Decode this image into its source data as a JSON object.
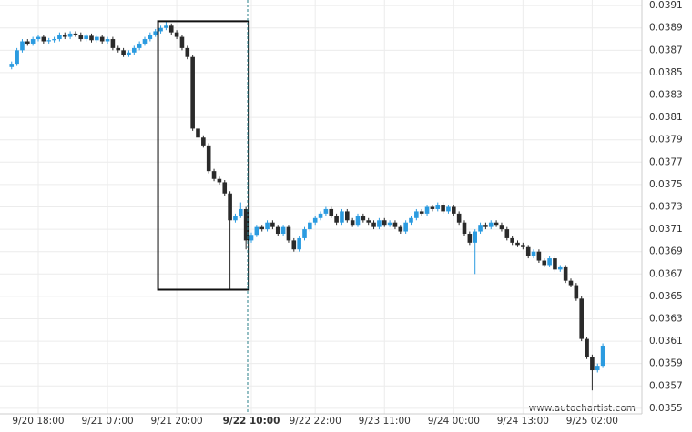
{
  "chart_data": {
    "type": "candlestick",
    "categories": [
      null,
      null,
      null,
      null,
      null,
      "9/20 18:00",
      null,
      null,
      null,
      null,
      null,
      null,
      null,
      null,
      null,
      null,
      null,
      null,
      "9/21 07:00",
      null,
      null,
      null,
      null,
      null,
      null,
      null,
      null,
      null,
      null,
      null,
      null,
      "9/21 20:00",
      null,
      null,
      null,
      null,
      null,
      null,
      null,
      null,
      null,
      null,
      null,
      null,
      null,
      "9/22 10:00",
      null,
      null,
      null,
      null,
      null,
      null,
      null,
      null,
      null,
      null,
      null,
      "9/22 22:00",
      null,
      null,
      null,
      null,
      null,
      null,
      null,
      null,
      null,
      null,
      null,
      null,
      "9/23 11:00",
      null,
      null,
      null,
      null,
      null,
      null,
      null,
      null,
      null,
      null,
      null,
      null,
      "9/24 00:00",
      null,
      null,
      null,
      null,
      null,
      null,
      null,
      null,
      null,
      null,
      null,
      null,
      "9/24 13:00",
      null,
      null,
      null,
      null,
      null,
      null,
      null,
      null,
      null,
      null,
      null,
      null,
      "9/25 02:00",
      null,
      null
    ],
    "open": [
      0.03855,
      0.03858,
      0.0387,
      0.03878,
      0.03876,
      0.0388,
      0.03882,
      0.03878,
      0.03879,
      0.0388,
      0.03884,
      0.03882,
      0.03885,
      0.03884,
      0.0388,
      0.03883,
      0.03879,
      0.03882,
      0.03878,
      0.0388,
      0.03872,
      0.0387,
      0.03866,
      0.03868,
      0.03872,
      0.03876,
      0.0388,
      0.03884,
      0.03887,
      0.0389,
      0.03892,
      0.03886,
      0.03882,
      0.03872,
      0.03864,
      0.038,
      0.03792,
      0.03785,
      0.03762,
      0.03755,
      0.03752,
      0.03742,
      0.03718,
      0.03722,
      0.03728,
      0.037,
      0.03705,
      0.03712,
      0.0371,
      0.03716,
      0.03712,
      0.03706,
      0.03712,
      0.037,
      0.03692,
      0.03702,
      0.0371,
      0.03716,
      0.0372,
      0.03724,
      0.03728,
      0.03722,
      0.03716,
      0.03726,
      0.03718,
      0.03714,
      0.03722,
      0.03718,
      0.03716,
      0.03712,
      0.03718,
      0.03714,
      0.03716,
      0.03712,
      0.03708,
      0.03716,
      0.0372,
      0.03726,
      0.03724,
      0.0373,
      0.03728,
      0.03732,
      0.03726,
      0.0373,
      0.03724,
      0.03716,
      0.03706,
      0.03698,
      0.03708,
      0.03714,
      0.03712,
      0.03716,
      0.03714,
      0.0371,
      0.03702,
      0.03698,
      0.03696,
      0.03694,
      0.03686,
      0.0369,
      0.03682,
      0.03678,
      0.03684,
      0.03674,
      0.03676,
      0.03664,
      0.0366,
      0.03648,
      0.03612,
      0.03596,
      0.03584,
      0.03588
    ],
    "high": [
      0.0386,
      0.03872,
      0.0388,
      0.0388,
      0.03882,
      0.03884,
      0.03884,
      0.03881,
      0.03882,
      0.03886,
      0.03886,
      0.03887,
      0.03887,
      0.03886,
      0.03885,
      0.03885,
      0.03884,
      0.03884,
      0.03882,
      0.03882,
      0.03874,
      0.03872,
      0.0387,
      0.03874,
      0.03878,
      0.03882,
      0.03886,
      0.03889,
      0.03892,
      0.03896,
      0.03894,
      0.03888,
      0.03884,
      0.03874,
      0.03866,
      0.03802,
      0.03794,
      0.03787,
      0.03764,
      0.03757,
      0.03754,
      0.03744,
      0.03724,
      0.03734,
      0.0373,
      0.03707,
      0.03714,
      0.03714,
      0.03718,
      0.03718,
      0.03714,
      0.03714,
      0.03714,
      0.03702,
      0.03704,
      0.03712,
      0.03718,
      0.03722,
      0.03726,
      0.0373,
      0.0373,
      0.03724,
      0.03728,
      0.03728,
      0.0372,
      0.03724,
      0.03724,
      0.0372,
      0.03718,
      0.0372,
      0.0372,
      0.03718,
      0.03718,
      0.03714,
      0.03718,
      0.03722,
      0.03728,
      0.03728,
      0.03732,
      0.03732,
      0.03734,
      0.03734,
      0.03732,
      0.03732,
      0.03726,
      0.03718,
      0.03708,
      0.0371,
      0.03716,
      0.03716,
      0.03718,
      0.03718,
      0.03716,
      0.03712,
      0.03704,
      0.037,
      0.03698,
      0.03696,
      0.03692,
      0.03692,
      0.03684,
      0.03686,
      0.03686,
      0.03678,
      0.03678,
      0.03666,
      0.03662,
      0.0365,
      0.03614,
      0.03598,
      0.0359,
      0.03608
    ],
    "low": [
      0.03853,
      0.03856,
      0.03868,
      0.03874,
      0.03874,
      0.03878,
      0.03876,
      0.03876,
      0.03877,
      0.03878,
      0.0388,
      0.0388,
      0.03882,
      0.03878,
      0.03878,
      0.03877,
      0.03877,
      0.03876,
      0.03876,
      0.0387,
      0.03868,
      0.03864,
      0.03864,
      0.03866,
      0.0387,
      0.03874,
      0.03878,
      0.03882,
      0.03885,
      0.03888,
      0.03884,
      0.0388,
      0.0387,
      0.03862,
      0.03798,
      0.0379,
      0.03783,
      0.0376,
      0.03753,
      0.0375,
      0.0374,
      0.03656,
      0.03716,
      0.0372,
      0.03692,
      0.03698,
      0.03703,
      0.03708,
      0.03708,
      0.0371,
      0.03704,
      0.03704,
      0.03698,
      0.0369,
      0.0369,
      0.037,
      0.03708,
      0.03714,
      0.03718,
      0.03722,
      0.0372,
      0.03714,
      0.03714,
      0.03716,
      0.03712,
      0.03712,
      0.03716,
      0.03714,
      0.0371,
      0.0371,
      0.03712,
      0.03712,
      0.0371,
      0.03706,
      0.03706,
      0.03714,
      0.03718,
      0.03722,
      0.03722,
      0.03726,
      0.03726,
      0.03724,
      0.03724,
      0.03722,
      0.03714,
      0.03704,
      0.03696,
      0.0367,
      0.03706,
      0.0371,
      0.0371,
      0.03712,
      0.03708,
      0.037,
      0.03696,
      0.03694,
      0.03692,
      0.03684,
      0.03684,
      0.0368,
      0.03676,
      0.03676,
      0.03672,
      0.03672,
      0.03662,
      0.03658,
      0.03646,
      0.0361,
      0.03594,
      0.03566,
      0.03582,
      0.03586
    ],
    "close": [
      0.03858,
      0.0387,
      0.03878,
      0.03876,
      0.0388,
      0.03882,
      0.03878,
      0.03879,
      0.0388,
      0.03884,
      0.03882,
      0.03885,
      0.03884,
      0.0388,
      0.03883,
      0.03879,
      0.03882,
      0.03878,
      0.0388,
      0.03872,
      0.0387,
      0.03866,
      0.03868,
      0.03872,
      0.03876,
      0.0388,
      0.03884,
      0.03887,
      0.0389,
      0.03892,
      0.03886,
      0.03882,
      0.03872,
      0.03864,
      0.038,
      0.03792,
      0.03785,
      0.03762,
      0.03755,
      0.03752,
      0.03742,
      0.03718,
      0.03722,
      0.03728,
      0.037,
      0.03705,
      0.03712,
      0.0371,
      0.03716,
      0.03712,
      0.03706,
      0.03712,
      0.037,
      0.03692,
      0.03702,
      0.0371,
      0.03716,
      0.0372,
      0.03724,
      0.03728,
      0.03722,
      0.03716,
      0.03726,
      0.03718,
      0.03714,
      0.03722,
      0.03718,
      0.03716,
      0.03712,
      0.03718,
      0.03714,
      0.03716,
      0.03712,
      0.03708,
      0.03716,
      0.0372,
      0.03726,
      0.03724,
      0.0373,
      0.03728,
      0.03732,
      0.03726,
      0.0373,
      0.03724,
      0.03716,
      0.03706,
      0.03698,
      0.03708,
      0.03714,
      0.03712,
      0.03716,
      0.03714,
      0.0371,
      0.03702,
      0.03698,
      0.03696,
      0.03694,
      0.03686,
      0.0369,
      0.03682,
      0.03678,
      0.03684,
      0.03674,
      0.03676,
      0.03664,
      0.0366,
      0.03648,
      0.03612,
      0.03596,
      0.03584,
      0.03588,
      0.03606
    ],
    "up_color": "#2b9be0",
    "down_color": "#2a2a2a",
    "ylim": [
      0.03545,
      0.03915
    ],
    "yticks": [
      0.0355,
      0.0357,
      0.0359,
      0.0361,
      0.0363,
      0.0365,
      0.0367,
      0.0369,
      0.0371,
      0.0373,
      0.0375,
      0.0377,
      0.0379,
      0.0381,
      0.0383,
      0.0385,
      0.0387,
      0.0389,
      0.0391
    ],
    "grid": true,
    "box": {
      "from": 28,
      "to": 44,
      "high": 0.03896,
      "low": 0.03656
    },
    "marker": 45,
    "source": "www.autochartist.com"
  }
}
